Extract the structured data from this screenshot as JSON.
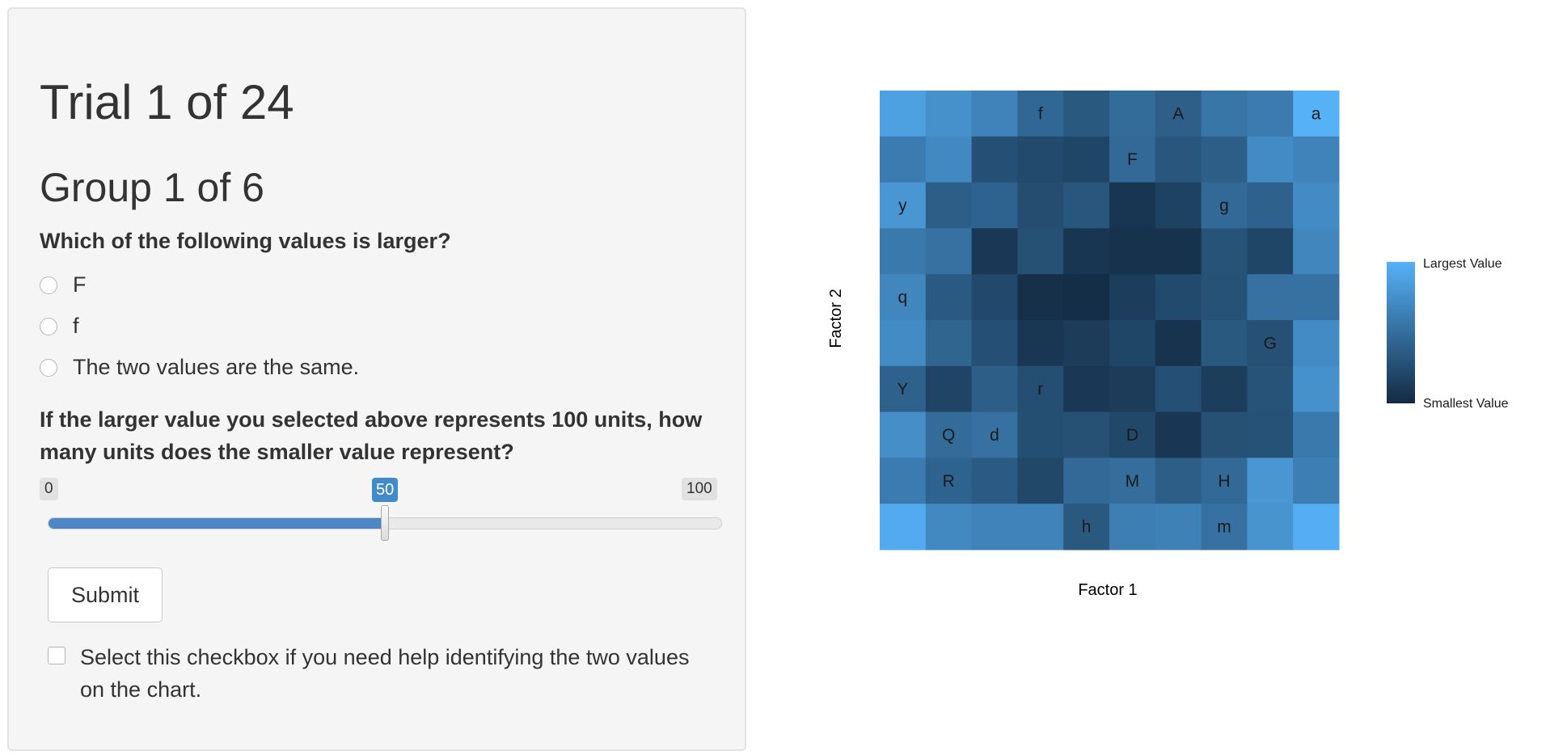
{
  "page": {
    "trial_title": "Trial 1 of 24",
    "group_title": "Group 1 of 6"
  },
  "question1": {
    "prompt": "Which of the following values is larger?",
    "options": [
      "F",
      "f",
      "The two values are the same."
    ],
    "selected": null
  },
  "question2": {
    "prompt": "If the larger value you selected above represents 100 units, how many units does the smaller value represent?",
    "slider": {
      "min": 0,
      "max": 100,
      "value": 50,
      "min_label": "0",
      "max_label": "100",
      "value_label": "50"
    }
  },
  "submit": {
    "label": "Submit"
  },
  "help": {
    "label": "Select this checkbox if you need help identifying the two values on the chart.",
    "checked": false
  },
  "colors": {
    "accent": "#428bca",
    "fill": "#4f86c6",
    "low": "#132b43",
    "high": "#56b1f7"
  },
  "chart_data": {
    "type": "heatmap",
    "xlabel": "Factor 1",
    "ylabel": "Factor 2",
    "legend": {
      "high_label": "Largest Value",
      "low_label": "Smallest Value",
      "placement": "right"
    },
    "rows": 10,
    "cols": 10,
    "values": [
      [
        0.88,
        0.76,
        0.66,
        0.45,
        0.34,
        0.48,
        0.39,
        0.56,
        0.6,
        1.0
      ],
      [
        0.6,
        0.7,
        0.27,
        0.23,
        0.2,
        0.46,
        0.32,
        0.38,
        0.72,
        0.66
      ],
      [
        0.8,
        0.38,
        0.42,
        0.25,
        0.32,
        0.08,
        0.17,
        0.46,
        0.4,
        0.72
      ],
      [
        0.58,
        0.52,
        0.1,
        0.28,
        0.08,
        0.05,
        0.05,
        0.3,
        0.2,
        0.68
      ],
      [
        0.68,
        0.35,
        0.22,
        0.04,
        0.02,
        0.14,
        0.23,
        0.29,
        0.52,
        0.52
      ],
      [
        0.72,
        0.43,
        0.27,
        0.09,
        0.13,
        0.2,
        0.06,
        0.34,
        0.28,
        0.72
      ],
      [
        0.4,
        0.19,
        0.38,
        0.26,
        0.1,
        0.13,
        0.27,
        0.14,
        0.3,
        0.76
      ],
      [
        0.74,
        0.48,
        0.52,
        0.26,
        0.28,
        0.21,
        0.09,
        0.28,
        0.29,
        0.58
      ],
      [
        0.6,
        0.42,
        0.36,
        0.21,
        0.46,
        0.5,
        0.38,
        0.46,
        0.8,
        0.62
      ],
      [
        0.95,
        0.7,
        0.66,
        0.66,
        0.34,
        0.62,
        0.64,
        0.52,
        0.78,
        0.98
      ]
    ],
    "labels": [
      {
        "row": 0,
        "col": 3,
        "text": "f"
      },
      {
        "row": 0,
        "col": 6,
        "text": "A"
      },
      {
        "row": 0,
        "col": 9,
        "text": "a"
      },
      {
        "row": 1,
        "col": 5,
        "text": "F"
      },
      {
        "row": 2,
        "col": 0,
        "text": "y"
      },
      {
        "row": 2,
        "col": 7,
        "text": "g"
      },
      {
        "row": 4,
        "col": 0,
        "text": "q"
      },
      {
        "row": 5,
        "col": 8,
        "text": "G"
      },
      {
        "row": 6,
        "col": 0,
        "text": "Y"
      },
      {
        "row": 6,
        "col": 3,
        "text": "r"
      },
      {
        "row": 7,
        "col": 1,
        "text": "Q"
      },
      {
        "row": 7,
        "col": 2,
        "text": "d"
      },
      {
        "row": 7,
        "col": 5,
        "text": "D"
      },
      {
        "row": 8,
        "col": 1,
        "text": "R"
      },
      {
        "row": 8,
        "col": 5,
        "text": "M"
      },
      {
        "row": 8,
        "col": 7,
        "text": "H"
      },
      {
        "row": 9,
        "col": 4,
        "text": "h"
      },
      {
        "row": 9,
        "col": 7,
        "text": "m"
      }
    ]
  }
}
